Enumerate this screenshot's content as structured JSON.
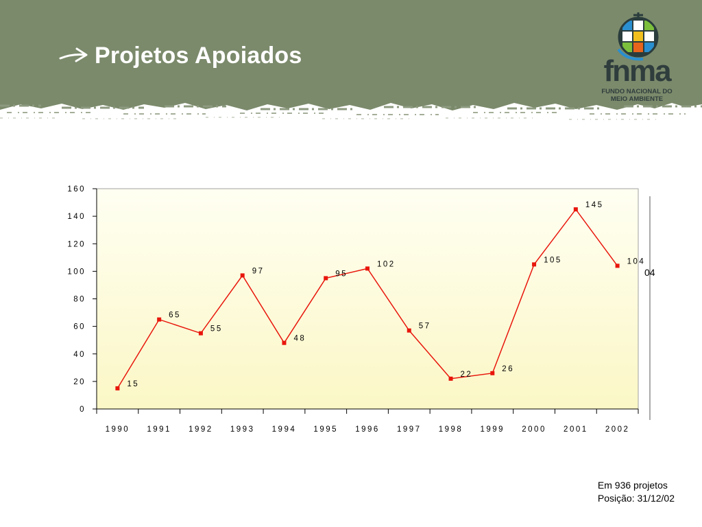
{
  "header": {
    "title": "Projetos Apoiados",
    "background_color": "#7b8a6b",
    "arrow_icon": "arrow-right-icon"
  },
  "logo": {
    "wordmark": "fnma",
    "subtitle_line1": "FUNDO NACIONAL DO",
    "subtitle_line2": "MEIO AMBIENTE"
  },
  "note": {
    "line1": "Em 936 projetos",
    "line2": "Posição: 31/12/02"
  },
  "stray_text": "04",
  "chart_data": {
    "type": "line",
    "title": "",
    "xlabel": "",
    "ylabel": "",
    "categories": [
      "1990",
      "1991",
      "1992",
      "1993",
      "1994",
      "1995",
      "1996",
      "1997",
      "1998",
      "1999",
      "2000",
      "2001",
      "2002"
    ],
    "series": [
      {
        "values": [
          15,
          65,
          55,
          97,
          48,
          95,
          102,
          57,
          22,
          26,
          105,
          145,
          104
        ],
        "color": "#e8160c"
      }
    ],
    "ylim": [
      0,
      160
    ],
    "yticks": [
      0,
      20,
      40,
      60,
      80,
      100,
      120,
      140,
      160
    ],
    "data_labels": true,
    "grid": false,
    "legend": "none",
    "plot_background": "#ffffe0"
  }
}
